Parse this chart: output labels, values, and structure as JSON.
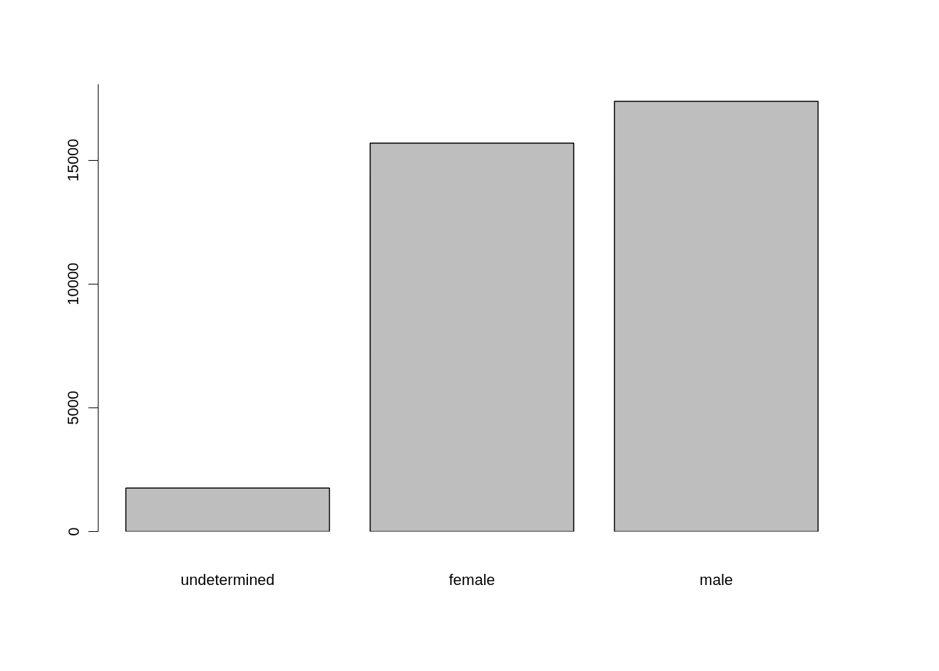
{
  "chart_data": {
    "type": "bar",
    "categories": [
      "undetermined",
      "female",
      "male"
    ],
    "values": [
      1760,
      15690,
      17370
    ],
    "color": "#bebebe",
    "ylim": [
      0,
      18065
    ],
    "yticks": [
      0,
      5000,
      10000,
      15000
    ],
    "grid": false
  }
}
